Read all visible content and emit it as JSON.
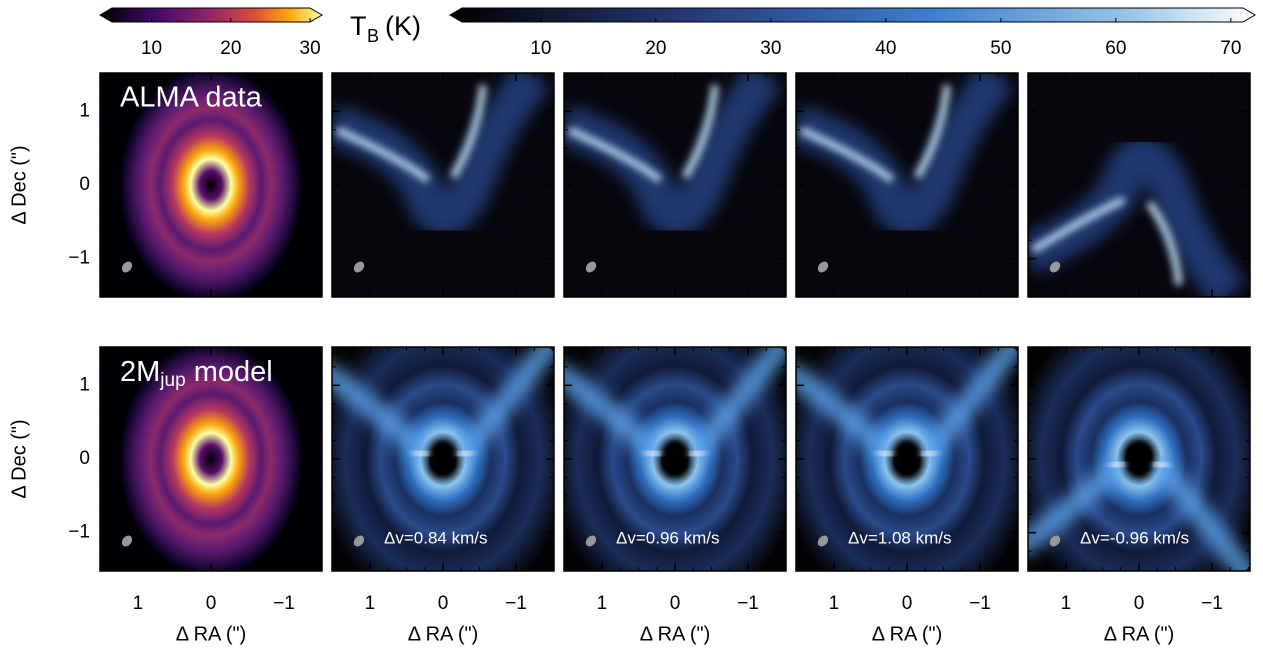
{
  "colorbars": [
    {
      "lim": [
        3.5,
        31.5
      ],
      "ticks": [
        10,
        20,
        30
      ]
    },
    {
      "lim": [
        2.1,
        72.1
      ],
      "ticks": [
        10,
        20,
        30,
        40,
        50,
        60,
        70
      ]
    }
  ],
  "colorbar_label": {
    "main": "T",
    "sub": "B",
    "unit": "(K)"
  },
  "axes": {
    "xlim": [
      1.52,
      -1.52
    ],
    "ylim": [
      -1.52,
      1.52
    ],
    "ticks": [
      1,
      0,
      {
        "value": -1,
        "label": "−1"
      }
    ],
    "xlabel": "Δ RA (\")",
    "ylabel": "Δ Dec (\")"
  },
  "rows": [
    {
      "label": "ALMA data"
    },
    {
      "label": {
        "main": "2M",
        "sub": "jup",
        "rest": " model"
      }
    }
  ],
  "velocity_labels": [
    "Δv=0.84 km/s",
    "Δv=0.96 km/s",
    "Δv=1.08 km/s",
    "Δv=-0.96 km/s"
  ]
}
